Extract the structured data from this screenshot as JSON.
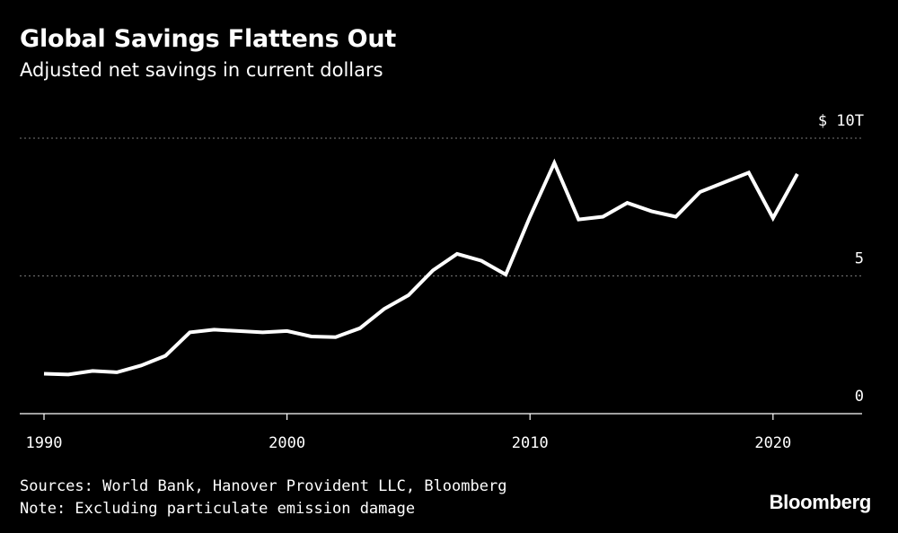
{
  "chart_data": {
    "type": "line",
    "title": "Global Savings Flattens Out",
    "subtitle": "Adjusted net savings in current dollars",
    "xlabel": "",
    "ylabel": "",
    "xlim": [
      1990,
      2023
    ],
    "ylim": [
      0,
      10
    ],
    "x_ticks": [
      {
        "value": 1990,
        "label": "1990"
      },
      {
        "value": 2000,
        "label": "2000"
      },
      {
        "value": 2010,
        "label": "2010"
      },
      {
        "value": 2020,
        "label": "2020"
      }
    ],
    "y_ticks": [
      {
        "value": 0,
        "label": "0"
      },
      {
        "value": 5,
        "label": "5"
      },
      {
        "value": 10,
        "label": "$ 10T"
      }
    ],
    "series": [
      {
        "name": "Adjusted net savings",
        "color": "#ffffff",
        "x": [
          1990,
          1991,
          1992,
          1993,
          1994,
          1995,
          1996,
          1997,
          1998,
          1999,
          2000,
          2001,
          2002,
          2003,
          2004,
          2005,
          2006,
          2007,
          2008,
          2009,
          2010,
          2011,
          2012,
          2013,
          2014,
          2015,
          2016,
          2017,
          2018,
          2019,
          2020,
          2021
        ],
        "values": [
          1.45,
          1.42,
          1.55,
          1.5,
          1.75,
          2.1,
          2.95,
          3.05,
          3.0,
          2.95,
          3.0,
          2.8,
          2.78,
          3.1,
          3.8,
          4.3,
          5.2,
          5.8,
          5.55,
          5.05,
          7.15,
          9.1,
          7.05,
          7.15,
          7.65,
          7.35,
          7.15,
          8.05,
          8.4,
          8.75,
          7.1,
          8.7
        ]
      }
    ],
    "grid": true
  },
  "footer": {
    "sources": "Sources: World Bank, Hanover Provident LLC, Bloomberg",
    "note": "Note: Excluding particulate emission damage"
  },
  "brand": "Bloomberg",
  "colors": {
    "background": "#000000",
    "line": "#ffffff",
    "gridline": "#777777",
    "text": "#ffffff"
  }
}
